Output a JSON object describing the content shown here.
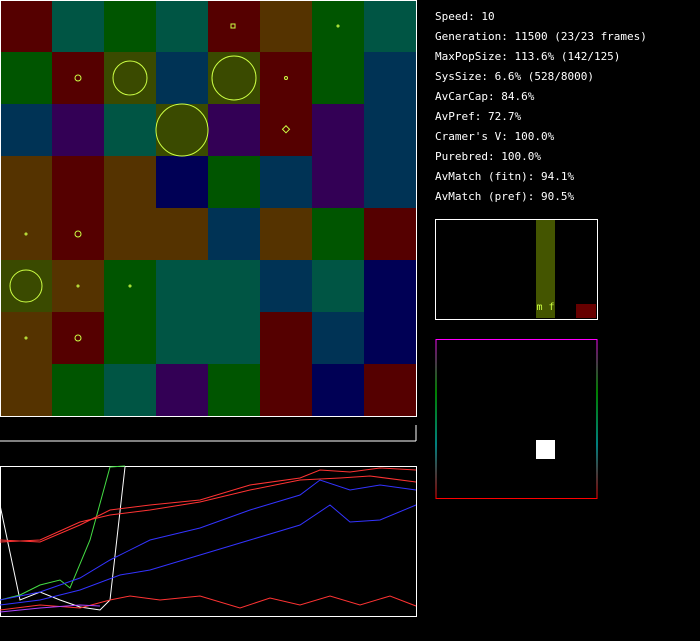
{
  "stats": [
    "Speed: 10",
    "Generation: 11500 (23/23 frames)",
    "MaxPopSize: 113.6% (142/125)",
    "SysSize: 6.6% (528/8000)",
    "AvCarCap: 84.6%",
    "AvPref: 72.7%",
    "Cramer's V: 100.0%",
    "Purebred: 100.0%",
    "AvMatch (fitn): 94.1%",
    "AvMatch (pref): 90.5%"
  ],
  "histogram": {
    "label": "m f"
  }
}
